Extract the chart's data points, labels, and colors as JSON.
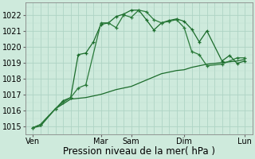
{
  "bg_color": "#ceeadc",
  "grid_color_major": "#a8cfc0",
  "grid_color_minor": "#bdddd0",
  "line_color1": "#1a6b2a",
  "line_color2": "#2a7a3a",
  "line_color3": "#1a6b2a",
  "ylim": [
    1014.5,
    1022.8
  ],
  "xlim": [
    0,
    15
  ],
  "yticks": [
    1015,
    1016,
    1017,
    1018,
    1019,
    1020,
    1021,
    1022
  ],
  "day_positions": [
    0.5,
    5.0,
    7.0,
    10.5,
    14.5
  ],
  "day_labels": [
    "Ven",
    "Mar",
    "Sam",
    "Dim",
    "Lun"
  ],
  "s1_x": [
    0.5,
    1.0,
    2.0,
    2.5,
    3.0,
    3.5,
    4.0,
    4.5,
    5.0,
    5.5,
    6.0,
    6.5,
    7.0,
    7.5,
    8.0,
    8.5,
    9.0,
    9.5,
    10.0,
    10.5,
    11.0,
    11.5,
    12.0,
    13.0,
    13.5,
    14.0,
    14.5
  ],
  "s1_y": [
    1014.9,
    1015.1,
    1016.1,
    1016.6,
    1016.8,
    1019.5,
    1019.6,
    1020.3,
    1021.4,
    1021.5,
    1021.9,
    1022.05,
    1022.3,
    1022.3,
    1021.7,
    1021.05,
    1021.5,
    1021.65,
    1021.75,
    1021.6,
    1021.1,
    1020.3,
    1021.0,
    1019.1,
    1019.45,
    1018.95,
    1019.1
  ],
  "s2_x": [
    0.5,
    1.0,
    2.0,
    2.5,
    3.0,
    3.5,
    4.0,
    5.0,
    5.5,
    6.0,
    6.5,
    7.0,
    7.5,
    8.0,
    8.5,
    9.0,
    9.5,
    10.0,
    10.5,
    11.0,
    11.5,
    12.0,
    13.0,
    14.0,
    14.5
  ],
  "s2_y": [
    1014.9,
    1015.1,
    1016.1,
    1016.5,
    1016.8,
    1017.4,
    1017.6,
    1021.5,
    1021.5,
    1021.2,
    1022.0,
    1021.85,
    1022.3,
    1022.2,
    1021.7,
    1021.5,
    1021.6,
    1021.7,
    1021.2,
    1019.7,
    1019.5,
    1018.8,
    1018.9,
    1019.3,
    1019.3
  ],
  "s3_x": [
    0.5,
    1.0,
    2.0,
    2.5,
    3.0,
    4.0,
    5.0,
    6.0,
    7.0,
    8.0,
    9.0,
    10.0,
    10.5,
    11.0,
    12.0,
    13.0,
    14.0,
    14.5
  ],
  "s3_y": [
    1014.9,
    1015.0,
    1016.1,
    1016.4,
    1016.7,
    1016.8,
    1017.0,
    1017.3,
    1017.5,
    1017.9,
    1018.3,
    1018.5,
    1018.55,
    1018.7,
    1018.9,
    1019.0,
    1019.1,
    1019.2
  ],
  "xlabel": "Pression niveau de la mer( hPa )",
  "xlabel_fontsize": 8.5,
  "tick_fontsize": 7,
  "ytick_fontsize": 7
}
